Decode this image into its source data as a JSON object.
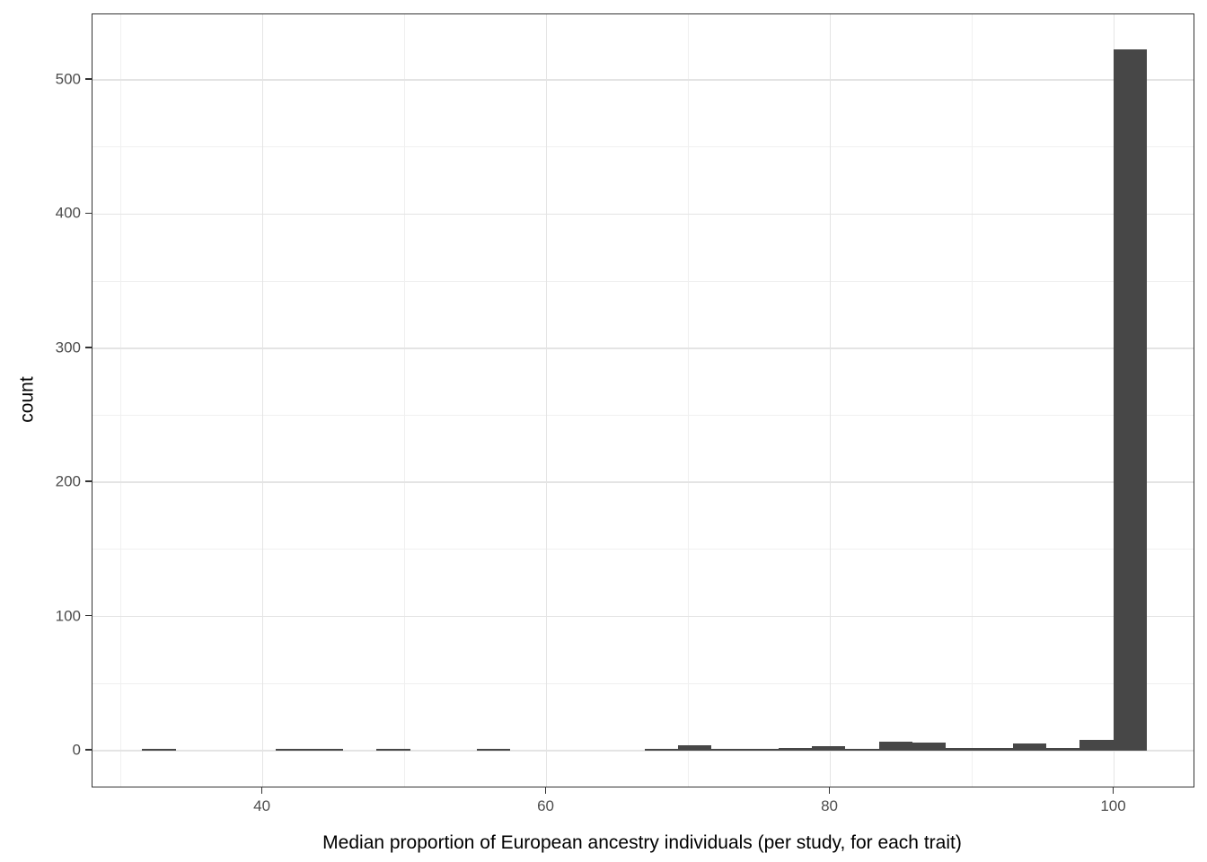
{
  "chart_data": {
    "type": "bar",
    "subtype": "histogram",
    "title": "",
    "xlabel": "Median proportion of European ancestry individuals (per study, for each trait)",
    "ylabel": "count",
    "x_tick_labels": [
      "40",
      "60",
      "80",
      "100"
    ],
    "x_ticks": [
      40,
      60,
      80,
      100
    ],
    "y_tick_labels": [
      "0",
      "100",
      "200",
      "300",
      "400",
      "500"
    ],
    "y_ticks": [
      0,
      100,
      200,
      300,
      400,
      500
    ],
    "x_minor_gridlines": [
      30,
      50,
      70,
      90
    ],
    "y_minor_gridlines": [
      50,
      150,
      250,
      350,
      450
    ],
    "xlim": [
      28.0,
      105.6
    ],
    "ylim": [
      -26.8,
      548.9
    ],
    "bin_width": 2.36,
    "grid": true,
    "legend": "none",
    "bars": [
      {
        "x": 32.68,
        "count": 1
      },
      {
        "x": 42.12,
        "count": 1
      },
      {
        "x": 44.48,
        "count": 1
      },
      {
        "x": 49.2,
        "count": 1
      },
      {
        "x": 56.28,
        "count": 1
      },
      {
        "x": 68.08,
        "count": 1
      },
      {
        "x": 70.44,
        "count": 4
      },
      {
        "x": 72.8,
        "count": 1
      },
      {
        "x": 75.16,
        "count": 1
      },
      {
        "x": 77.52,
        "count": 2
      },
      {
        "x": 79.88,
        "count": 3
      },
      {
        "x": 82.24,
        "count": 1
      },
      {
        "x": 84.6,
        "count": 7
      },
      {
        "x": 86.96,
        "count": 6
      },
      {
        "x": 89.32,
        "count": 2
      },
      {
        "x": 91.68,
        "count": 2
      },
      {
        "x": 94.04,
        "count": 5
      },
      {
        "x": 96.4,
        "count": 2
      },
      {
        "x": 98.76,
        "count": 8
      },
      {
        "x": 101.12,
        "count": 523
      }
    ],
    "colors": {
      "bar_fill": "#474747",
      "panel_border": "#333333",
      "major_gridline": "#e4e4e4",
      "minor_gridline": "#f0f0f0",
      "tick_label": "#4d4d4d",
      "axis_title": "#000000",
      "background": "#ffffff"
    }
  }
}
